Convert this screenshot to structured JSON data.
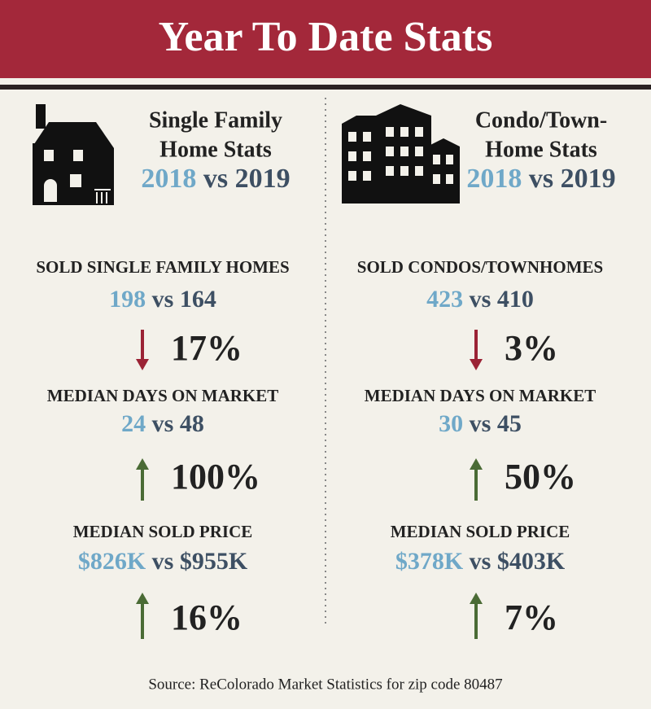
{
  "header": {
    "title": "Year To Date Stats"
  },
  "columns": [
    {
      "heading": [
        "Single Family",
        "Home Stats"
      ],
      "years": {
        "from": "2018",
        "vs": "vs",
        "to": "2019"
      },
      "stats": [
        {
          "label": "SOLD SINGLE FAMILY HOMES",
          "from": "198",
          "vs": "vs",
          "to": "164",
          "change": "17%",
          "direction": "down"
        },
        {
          "label": "MEDIAN DAYS ON MARKET",
          "from": "24",
          "vs": "vs",
          "to": "48",
          "change": "100%",
          "direction": "up"
        },
        {
          "label": "MEDIAN SOLD PRICE",
          "from": "$826K",
          "vs": "vs",
          "to": "$955K",
          "change": "16%",
          "direction": "up"
        }
      ]
    },
    {
      "heading": [
        "Condo/Town-",
        "Home Stats"
      ],
      "years": {
        "from": "2018",
        "vs": "vs",
        "to": "2019"
      },
      "stats": [
        {
          "label": "SOLD CONDOS/TOWNHOMES",
          "from": "423",
          "vs": "vs",
          "to": "410",
          "change": "3%",
          "direction": "down"
        },
        {
          "label": "MEDIAN DAYS ON MARKET",
          "from": "30",
          "vs": "vs",
          "to": "45",
          "change": "50%",
          "direction": "up"
        },
        {
          "label": "MEDIAN SOLD PRICE",
          "from": "$378K",
          "vs": "vs",
          "to": "$403K",
          "change": "7%",
          "direction": "up"
        }
      ]
    }
  ],
  "footer": {
    "source": "Source: ReColorado Market Statistics for zip code 80487"
  }
}
